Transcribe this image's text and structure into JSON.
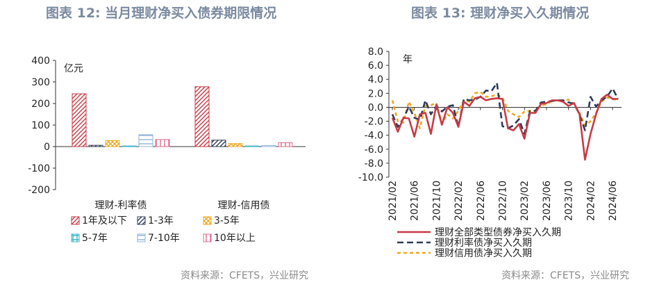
{
  "left": {
    "title": "图表 12: 当月理财净买入债券期限情况",
    "source": "资料来源：CFETS，兴业研究"
  },
  "right": {
    "title": "图表 13: 理财净买入久期情况",
    "source": "资料来源：CFETS，兴业研究"
  },
  "colors": {
    "title": "#7b8aa0",
    "red": "#c73a45",
    "navy": "#2f3b57",
    "orange": "#f0a820",
    "cyan": "#3cb8c8",
    "lightblue": "#8fb3d9",
    "pink": "#e06b8b"
  },
  "chart_data": [
    {
      "type": "bar",
      "ylabel": "亿元",
      "ylim": [
        -200,
        400
      ],
      "yticks": [
        400,
        300,
        200,
        100,
        0,
        -100,
        -200
      ],
      "categories": [
        "理财-利率债",
        "理财-信用债"
      ],
      "series": [
        {
          "name": "1年及以下",
          "values": [
            245,
            278
          ],
          "color": "#c73a45",
          "pattern": "diag"
        },
        {
          "name": "1-3年",
          "values": [
            6,
            30
          ],
          "color": "#2f3b57",
          "pattern": "diag"
        },
        {
          "name": "3-5年",
          "values": [
            28,
            14
          ],
          "color": "#f0a820",
          "pattern": "cross"
        },
        {
          "name": "5-7年",
          "values": [
            3,
            3
          ],
          "color": "#3cb8c8",
          "pattern": "grid"
        },
        {
          "name": "7-10年",
          "values": [
            55,
            5
          ],
          "color": "#8fb3d9",
          "pattern": "hlines"
        },
        {
          "name": "10年以上",
          "values": [
            33,
            18
          ],
          "color": "#e06b8b",
          "pattern": "vlines"
        }
      ],
      "legend": "bottom"
    },
    {
      "type": "line",
      "ylabel": "年",
      "ylim": [
        -10,
        8
      ],
      "yticks": [
        "8.0",
        "6.0",
        "4.0",
        "2.0",
        "0.0",
        "-2.0",
        "-4.0",
        "-6.0",
        "-8.0",
        "-10.0"
      ],
      "xticks": [
        "2021/02",
        "2021/06",
        "2021/10",
        "2022/02",
        "2022/06",
        "2022/10",
        "2023/02",
        "2023/06",
        "2023/10",
        "2024/02",
        "2024/06"
      ],
      "x_start": "2021/02",
      "series": [
        {
          "name": "理财全部类型债券净买入久期",
          "color": "#c73a45",
          "style": "solid",
          "values": [
            -1.5,
            -3.5,
            -1.5,
            -1.6,
            -4.2,
            -1.0,
            -0.8,
            -3.8,
            0.4,
            -2.5,
            0.0,
            -0.8,
            -2.8,
            0.8,
            0.2,
            1.3,
            1.5,
            1.0,
            1.2,
            1.3,
            1.2,
            -3.0,
            -3.3,
            -2.4,
            -4.5,
            -0.8,
            -0.8,
            0.5,
            0.6,
            1.0,
            1.0,
            0.8,
            0.2,
            0.6,
            -1.0,
            -7.5,
            -3.8,
            -1.0,
            1.2,
            1.8,
            1.2,
            1.2
          ]
        },
        {
          "name": "理财利率债净买入久期",
          "color": "#2f3b57",
          "style": "dash",
          "values": [
            -1.0,
            -2.8,
            -1.6,
            0.1,
            -1.5,
            -1.8,
            1.0,
            -1.0,
            0.2,
            -0.6,
            0.1,
            0.3,
            -2.8,
            1.2,
            1.0,
            1.1,
            1.5,
            2.4,
            2.3,
            3.5,
            -2.7,
            -3.0,
            -2.6,
            -1.7,
            -3.8,
            -0.5,
            -0.5,
            0.7,
            0.8,
            0.9,
            1.0,
            1.0,
            0.7,
            0.5,
            -1.0,
            -3.3,
            1.5,
            0.1,
            1.0,
            1.5,
            2.7,
            1.2
          ]
        },
        {
          "name": "理财信用债净买入久期",
          "color": "#f0a820",
          "style": "dash",
          "values": [
            1.0,
            -2.0,
            -2.2,
            0.8,
            -0.8,
            -3.0,
            0.2,
            0.3,
            0.6,
            -2.3,
            -1.0,
            -1.6,
            -0.5,
            1.0,
            0.8,
            2.0,
            2.2,
            1.5,
            1.6,
            1.8,
            1.4,
            -0.5,
            -1.0,
            -1.4,
            -0.6,
            -0.5,
            -0.7,
            0.3,
            0.4,
            0.9,
            1.0,
            1.0,
            1.1,
            0.5,
            -0.8,
            -2.6,
            -2.0,
            -0.8,
            0.8,
            1.4,
            1.2,
            1.0
          ]
        }
      ],
      "legend": "bottom"
    }
  ]
}
